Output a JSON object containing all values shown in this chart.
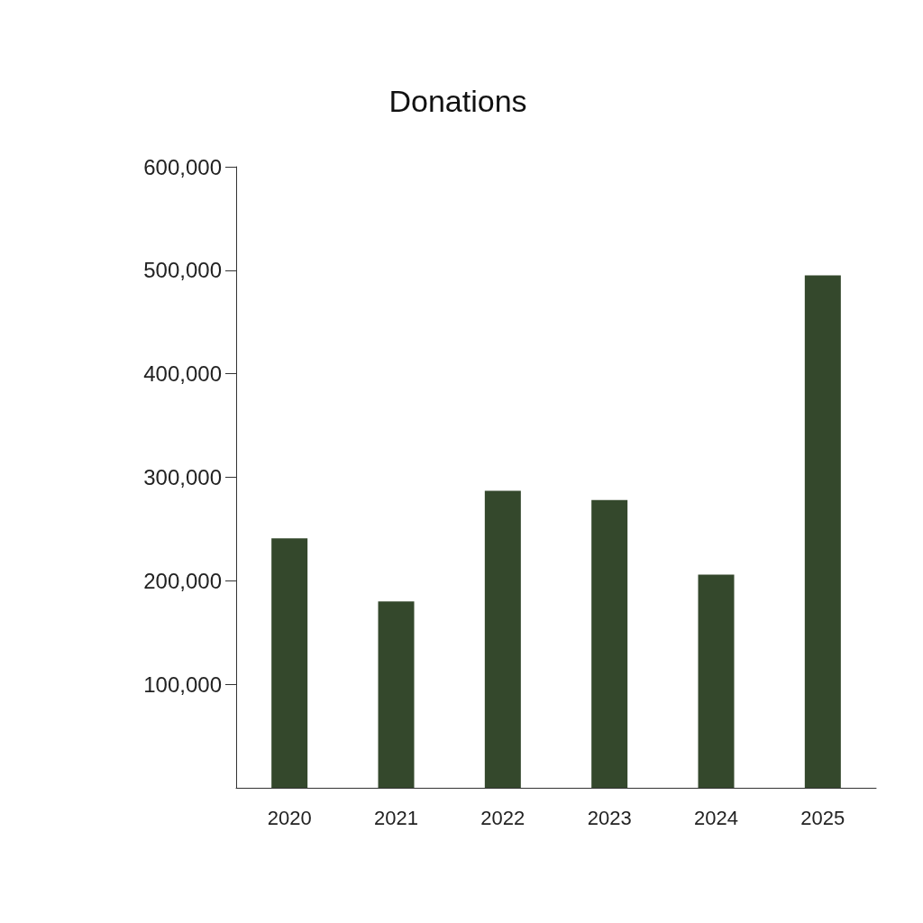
{
  "chart_data": {
    "type": "bar",
    "title": "Donations",
    "categories": [
      "2020",
      "2021",
      "2022",
      "2023",
      "2024",
      "2025"
    ],
    "values": [
      241000,
      180000,
      287000,
      278000,
      206000,
      495000
    ],
    "color": "#34482c",
    "ylim": [
      0,
      600000
    ],
    "yticks": [
      {
        "value": 100000,
        "label": "100,000"
      },
      {
        "value": 200000,
        "label": "200,000"
      },
      {
        "value": 300000,
        "label": "300,000"
      },
      {
        "value": 400000,
        "label": "400,000"
      },
      {
        "value": 500000,
        "label": "500,000"
      },
      {
        "value": 600000,
        "label": "600,000"
      }
    ],
    "grid": false
  }
}
